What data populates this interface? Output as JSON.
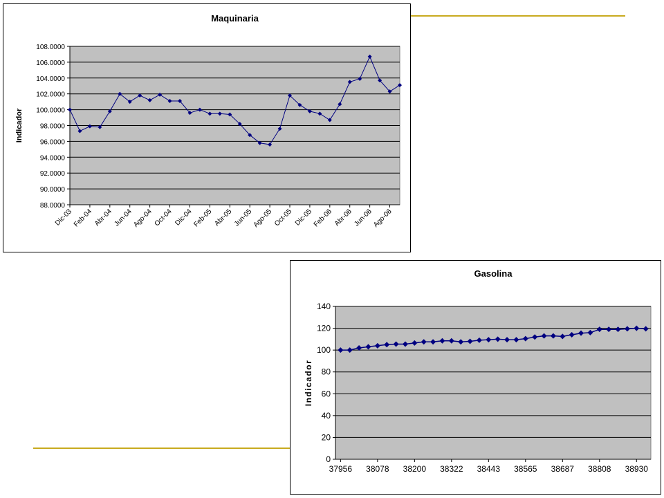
{
  "colors": {
    "plot_background": "#c0c0c0",
    "series": "#000080",
    "gridline": "#000000",
    "decor_line": "#c8aa1e"
  },
  "chart_data": [
    {
      "type": "line",
      "title": "Maquinaria",
      "ylabel": "Indicador",
      "xlabel": "",
      "ylim": [
        88,
        108
      ],
      "y_ticks": [
        88,
        90,
        92,
        94,
        96,
        98,
        100,
        102,
        104,
        106,
        108
      ],
      "y_tick_labels": [
        "88.0000",
        "90.0000",
        "92.0000",
        "94.0000",
        "96.0000",
        "98.0000",
        "100.0000",
        "102.0000",
        "104.0000",
        "106.0000",
        "108.0000"
      ],
      "x_tick_labels": [
        "Dic-03",
        "Feb-04",
        "Abr-04",
        "Jun-04",
        "Ago-04",
        "Oct-04",
        "Dic-04",
        "Feb-05",
        "Abr-05",
        "Jun-05",
        "Ago-05",
        "Oct-05",
        "Dic-05",
        "Feb-06",
        "Abr-06",
        "Jun-06",
        "Ago-06"
      ],
      "grid": true,
      "legend": false,
      "series": [
        {
          "marker": "diamond",
          "values": [
            100.0,
            97.3,
            97.9,
            97.8,
            99.8,
            102.0,
            101.0,
            101.8,
            101.2,
            101.9,
            101.1,
            101.1,
            99.6,
            100.0,
            99.5,
            99.5,
            99.4,
            98.2,
            96.8,
            95.8,
            95.6,
            97.6,
            101.8,
            100.6,
            99.8,
            99.5,
            98.7,
            100.7,
            103.5,
            103.9,
            106.7,
            103.7,
            102.3,
            103.1
          ]
        }
      ]
    },
    {
      "type": "line",
      "title": "Gasolina",
      "ylabel": "Indicador",
      "xlabel": "",
      "ylim": [
        0,
        140
      ],
      "y_ticks": [
        0,
        20,
        40,
        60,
        80,
        100,
        120,
        140
      ],
      "x_tick_labels": [
        "37956",
        "38078",
        "38200",
        "38322",
        "38443",
        "38565",
        "38687",
        "38808",
        "38930"
      ],
      "grid": true,
      "legend": false,
      "series": [
        {
          "marker": "diamond",
          "values": [
            100,
            100,
            102,
            103,
            104,
            105,
            105.5,
            105.5,
            106.5,
            107.5,
            107.5,
            108.5,
            108.5,
            107.5,
            108,
            109,
            109.5,
            110,
            109.5,
            109.5,
            110.5,
            112,
            113,
            113,
            112.5,
            114,
            115.5,
            116,
            119,
            119,
            119,
            119.5,
            120,
            119.5
          ]
        }
      ]
    }
  ]
}
